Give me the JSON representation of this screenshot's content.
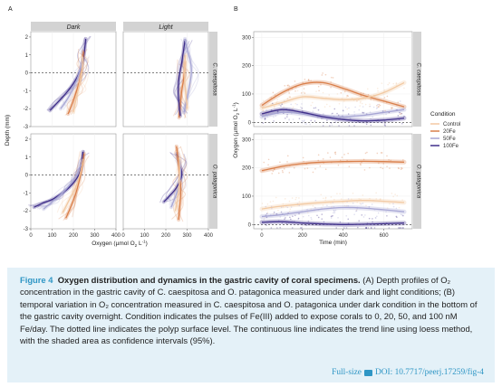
{
  "colors": {
    "control": "#f2c9a2",
    "fe20": "#d97f4a",
    "fe50": "#a7a6d4",
    "fe100": "#3f2f8a",
    "strip": "#d3d3d3",
    "caption_bg": "#e4f1f8",
    "link": "#2f96c5"
  },
  "panel_labels": {
    "a": "A",
    "b": "B"
  },
  "chart_data": [
    {
      "type": "line",
      "panel": "A",
      "facet_columns": [
        "Dark",
        "Light"
      ],
      "facet_rows": [
        "C. caespitosa",
        "O. patagonica"
      ],
      "xlabel": "Oxygen (µmol O",
      "xlabel_sub": "2",
      "xlabel_end": " L",
      "xlabel_sup": "-1",
      "xlabel_close": ")",
      "ylabel": "Depth (mm)",
      "xticks": [
        "0",
        "100",
        "200",
        "300",
        "400"
      ],
      "xlim": [
        0,
        400
      ],
      "yticks_top": [
        "2",
        "1",
        "0",
        "-1",
        "-2",
        "-3"
      ],
      "yticks_bottom": [
        "2",
        "1",
        "0",
        "-1",
        "-2",
        "-3"
      ],
      "ylim": [
        -3,
        2.3
      ],
      "surface_line": 0,
      "series": [
        {
          "facet": "C. caespitosa|Dark",
          "group": "fe100",
          "x": [
            90,
            130,
            175,
            215,
            240,
            252,
            258
          ],
          "y": [
            -2.1,
            -1.6,
            -1.0,
            -0.3,
            0.4,
            1.2,
            1.9
          ]
        },
        {
          "facet": "C. caespitosa|Dark",
          "group": "fe20",
          "x": [
            175,
            195,
            215,
            232,
            242,
            248
          ],
          "y": [
            -2.3,
            -1.7,
            -1.0,
            -0.3,
            0.5,
            1.2
          ]
        },
        {
          "facet": "C. caespitosa|Dark",
          "group": "fe50",
          "x": [
            140,
            175,
            205,
            228,
            245
          ],
          "y": [
            -2.0,
            -1.4,
            -0.7,
            0.0,
            0.8
          ]
        },
        {
          "facet": "C. caespitosa|Dark",
          "group": "control",
          "x": [
            200,
            212,
            225,
            238,
            245
          ],
          "y": [
            -2.2,
            -1.5,
            -0.8,
            0.0,
            0.9
          ]
        },
        {
          "facet": "C. caespitosa|Light",
          "group": "fe20",
          "x": [
            262,
            268,
            275,
            285,
            290
          ],
          "y": [
            -2.5,
            -1.8,
            -1.0,
            -0.2,
            0.6
          ]
        },
        {
          "facet": "C. caespitosa|Light",
          "group": "fe100",
          "x": [
            268,
            262,
            258,
            262,
            275,
            290
          ],
          "y": [
            -2.4,
            -1.7,
            -1.0,
            -0.3,
            0.6,
            1.8
          ]
        },
        {
          "facet": "C. caespitosa|Light",
          "group": "fe50",
          "x": [
            285,
            298,
            310,
            320,
            315,
            300,
            290
          ],
          "y": [
            -2.2,
            -1.5,
            -0.8,
            0.0,
            0.7,
            1.3,
            1.9
          ]
        },
        {
          "facet": "C. caespitosa|Light",
          "group": "control",
          "x": [
            300,
            295,
            290,
            288,
            292
          ],
          "y": [
            -2.0,
            -1.3,
            -0.6,
            0.2,
            1.0
          ]
        },
        {
          "facet": "O. patagonica|Dark",
          "group": "fe100",
          "x": [
            15,
            50,
            110,
            180,
            225,
            240,
            245
          ],
          "y": [
            -1.8,
            -1.6,
            -1.3,
            -0.7,
            0.0,
            0.7,
            1.3
          ]
        },
        {
          "facet": "O. patagonica|Dark",
          "group": "fe20",
          "x": [
            165,
            190,
            212,
            230,
            243,
            250
          ],
          "y": [
            -2.4,
            -1.7,
            -1.0,
            -0.2,
            0.6,
            1.2
          ]
        },
        {
          "facet": "O. patagonica|Dark",
          "group": "fe50",
          "x": [
            60,
            110,
            165,
            210,
            235
          ],
          "y": [
            -1.9,
            -1.4,
            -0.8,
            -0.1,
            0.6
          ]
        },
        {
          "facet": "O. patagonica|Dark",
          "group": "control",
          "x": [
            150,
            180,
            210,
            232,
            245
          ],
          "y": [
            -2.1,
            -1.4,
            -0.7,
            0.1,
            0.9
          ]
        },
        {
          "facet": "O. patagonica|Light",
          "group": "fe100",
          "x": [
            190,
            215,
            250,
            275,
            262,
            252
          ],
          "y": [
            -1.5,
            -1.2,
            -0.7,
            0.0,
            0.7,
            1.2
          ]
        },
        {
          "facet": "O. patagonica|Light",
          "group": "fe20",
          "x": [
            260,
            265,
            270,
            268,
            262,
            255,
            250
          ],
          "y": [
            -2.5,
            -1.8,
            -1.1,
            -0.3,
            0.4,
            1.1,
            1.6
          ]
        },
        {
          "facet": "O. patagonica|Light",
          "group": "fe50",
          "x": [
            225,
            245,
            262,
            270,
            265
          ],
          "y": [
            -1.8,
            -1.2,
            -0.6,
            0.1,
            0.8
          ]
        },
        {
          "facet": "O. patagonica|Light",
          "group": "control",
          "x": [
            245,
            255,
            262,
            265,
            262
          ],
          "y": [
            -2.0,
            -1.3,
            -0.6,
            0.2,
            1.0
          ]
        }
      ]
    },
    {
      "type": "line",
      "panel": "B",
      "facet_rows": [
        "C. caespitosa",
        "O. patagonica"
      ],
      "xlabel": "Time (min)",
      "ylabel": "Oxygen (µmol O",
      "ylabel_sub": "2",
      "ylabel_end": " L",
      "ylabel_sup": "-1",
      "ylabel_close": ")",
      "xticks": [
        "0",
        "200",
        "400",
        "600"
      ],
      "xlim": [
        -40,
        740
      ],
      "yticks": [
        "0",
        "100",
        "200",
        "300"
      ],
      "ylim": [
        -15,
        320
      ],
      "reference_line": 0,
      "legend": {
        "title": "Condition",
        "position": "right",
        "entries": [
          {
            "label": "Control",
            "group": "control"
          },
          {
            "label": "20Fe",
            "group": "fe20"
          },
          {
            "label": "50Fe",
            "group": "fe50"
          },
          {
            "label": "100Fe",
            "group": "fe100"
          }
        ]
      },
      "series": [
        {
          "facet": "C. caespitosa",
          "group": "fe20",
          "x": [
            0,
            100,
            200,
            300,
            400,
            500,
            600,
            700
          ],
          "y": [
            60,
            105,
            135,
            140,
            120,
            95,
            75,
            55
          ]
        },
        {
          "facet": "C. caespitosa",
          "group": "control",
          "x": [
            0,
            100,
            200,
            300,
            400,
            500,
            600,
            700
          ],
          "y": [
            50,
            70,
            90,
            85,
            80,
            85,
            105,
            140
          ]
        },
        {
          "facet": "C. caespitosa",
          "group": "fe50",
          "x": [
            0,
            100,
            200,
            300,
            400,
            500,
            600,
            700
          ],
          "y": [
            20,
            35,
            30,
            20,
            20,
            25,
            35,
            45
          ]
        },
        {
          "facet": "C. caespitosa",
          "group": "fe100",
          "x": [
            0,
            100,
            200,
            300,
            400,
            500,
            600,
            700
          ],
          "y": [
            30,
            45,
            35,
            20,
            10,
            5,
            8,
            15
          ]
        },
        {
          "facet": "O. patagonica",
          "group": "fe20",
          "x": [
            0,
            100,
            200,
            300,
            400,
            500,
            600,
            700
          ],
          "y": [
            190,
            205,
            215,
            220,
            222,
            223,
            222,
            220
          ]
        },
        {
          "facet": "O. patagonica",
          "group": "control",
          "x": [
            0,
            100,
            200,
            300,
            400,
            500,
            600,
            700
          ],
          "y": [
            55,
            65,
            72,
            78,
            82,
            85,
            82,
            78
          ]
        },
        {
          "facet": "O. patagonica",
          "group": "fe50",
          "x": [
            0,
            100,
            200,
            300,
            400,
            500,
            600,
            700
          ],
          "y": [
            28,
            35,
            45,
            55,
            60,
            58,
            52,
            45
          ]
        },
        {
          "facet": "O. patagonica",
          "group": "fe100",
          "x": [
            0,
            100,
            200,
            300,
            400,
            500,
            600,
            700
          ],
          "y": [
            8,
            10,
            5,
            2,
            0,
            1,
            3,
            5
          ]
        }
      ]
    }
  ],
  "caption": {
    "fig_label": "Figure 4",
    "title": "Oxygen distribution and dynamics in the gastric cavity of coral specimens.",
    "body": "(A) Depth profiles of O₂ concentration in the gastric cavity of C. caespitosa and O. patagonica measured under dark and light conditions; (B) temporal variation in O₂ concentration measured in C. caespitosa and O. patagonica under dark condition in the bottom of the gastric cavity overnight. Condition indicates the pulses of Fe(III) added to expose corals to 0, 20, 50, and 100 nM Fe/day. The dotted line indicates the polyp surface level. The continuous line indicates the trend line using loess method, with the shaded area as confidence intervals (95%).",
    "full_size": "Full-size",
    "doi": "DOI: 10.7717/peerj.17259/fig-4"
  }
}
